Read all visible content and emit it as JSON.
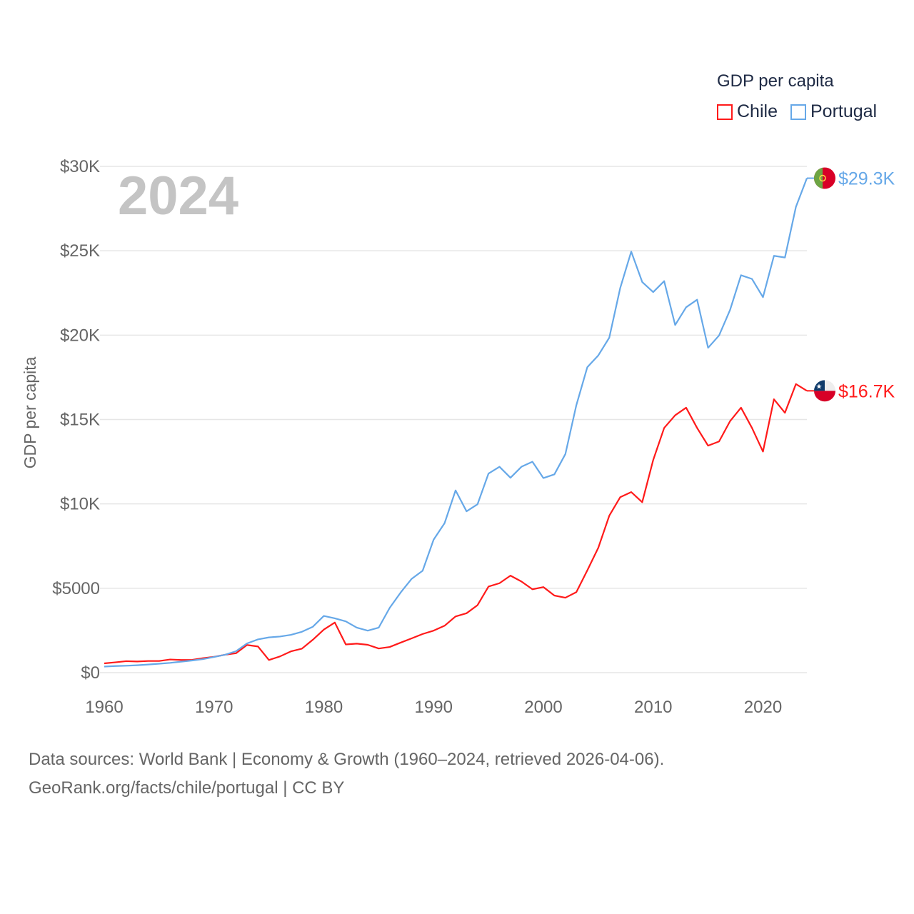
{
  "legend": {
    "title": "GDP per capita",
    "items": [
      {
        "label": "Chile",
        "color": "#ff1a1a"
      },
      {
        "label": "Portugal",
        "color": "#66a8e8"
      }
    ]
  },
  "footer": {
    "line1": "Data sources: World Bank | Economy & Growth (1960–2024, retrieved 2026-04-06).",
    "line2": "GeoRank.org/facts/chile/portugal | CC BY"
  },
  "chart_data": {
    "type": "line",
    "year_label": "2024",
    "ylabel": "GDP per capita",
    "xlim": [
      1960,
      2024
    ],
    "ylim": [
      0,
      30000
    ],
    "x_ticks": [
      1960,
      1970,
      1980,
      1990,
      2000,
      2010,
      2020
    ],
    "x_tick_labels": [
      "1960",
      "1970",
      "1980",
      "1990",
      "2000",
      "2010",
      "2020"
    ],
    "y_ticks": [
      0,
      5000,
      10000,
      15000,
      20000,
      25000,
      30000
    ],
    "y_tick_labels": [
      "$0",
      "$5000",
      "$10K",
      "$15K",
      "$20K",
      "$25K",
      "$30K"
    ],
    "grid": true,
    "legend_position": "top-right",
    "x_start": 1960,
    "series": [
      {
        "name": "Chile",
        "color": "#ff1a1a",
        "end_label": "$16.7K",
        "flag": "chile",
        "values": [
          550,
          610,
          680,
          660,
          690,
          690,
          780,
          750,
          760,
          860,
          940,
          1060,
          1150,
          1640,
          1550,
          750,
          960,
          1260,
          1420,
          1950,
          2550,
          2970,
          1670,
          1720,
          1650,
          1430,
          1520,
          1780,
          2030,
          2290,
          2490,
          2780,
          3330,
          3520,
          4000,
          5100,
          5300,
          5750,
          5400,
          4940,
          5070,
          4570,
          4440,
          4770,
          6060,
          7400,
          9300,
          10400,
          10700,
          10100,
          12600,
          14500,
          15250,
          15700,
          14500,
          13450,
          13700,
          14900,
          15700,
          14500,
          13100,
          16200,
          15400,
          17100,
          16700
        ]
      },
      {
        "name": "Portugal",
        "color": "#66a8e8",
        "end_label": "$29.3K",
        "flag": "portugal",
        "values": [
          360,
          390,
          410,
          440,
          480,
          530,
          580,
          650,
          720,
          800,
          930,
          1060,
          1270,
          1730,
          1970,
          2090,
          2140,
          2240,
          2420,
          2720,
          3360,
          3220,
          3040,
          2670,
          2490,
          2670,
          3840,
          4750,
          5560,
          6040,
          7880,
          8860,
          10800,
          9560,
          9980,
          11800,
          12200,
          11550,
          12200,
          12500,
          11530,
          11750,
          12950,
          15850,
          18100,
          18800,
          19850,
          22800,
          24950,
          23150,
          22550,
          23200,
          20600,
          21650,
          22100,
          19250,
          19980,
          21490,
          23550,
          23330,
          22250,
          24700,
          24600,
          27600,
          29300
        ]
      }
    ]
  }
}
